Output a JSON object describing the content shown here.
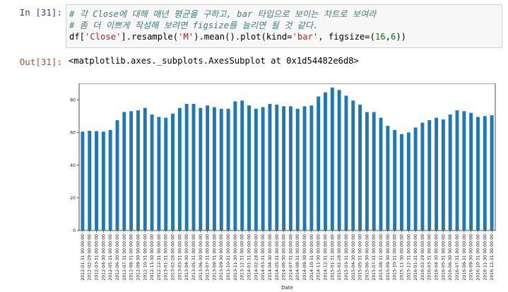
{
  "cell": {
    "in_prompt": "In [31]:",
    "out_prompt": "Out[31]:",
    "code": {
      "comment1": "# 각 Close에 대해 매년 평균을 구하고, bar 타입으로 보이는 차트로 보여라",
      "comment2": "# 좀 더 이쁘게 작성해 보려면 figsize를 늘리면 될 것 같다.",
      "line3": {
        "p1": "df[",
        "s1": "'Close'",
        "p2": "].resample(",
        "s2": "'M'",
        "p3": ").mean().plot(kind=",
        "s3": "'bar'",
        "p4": ", figsize=(",
        "n1": "16",
        "p5": ",",
        "n2": "6",
        "p6": "))"
      }
    },
    "output_text": "<matplotlib.axes._subplots.AxesSubplot at 0x1d54482e6d8>"
  },
  "chart_data": {
    "type": "bar",
    "xlabel": "Date",
    "ylabel": "",
    "ylim": [
      0,
      90
    ],
    "yticks": [
      0,
      20,
      40,
      60,
      80
    ],
    "bar_color": "#1f77b4",
    "categories": [
      "2012-01-31 00:00:00",
      "2012-02-29 00:00:00",
      "2012-03-31 00:00:00",
      "2012-04-30 00:00:00",
      "2012-05-31 00:00:00",
      "2012-06-30 00:00:00",
      "2012-07-31 00:00:00",
      "2012-08-31 00:00:00",
      "2012-09-30 00:00:00",
      "2012-10-31 00:00:00",
      "2012-11-30 00:00:00",
      "2012-12-31 00:00:00",
      "2013-01-31 00:00:00",
      "2013-02-28 00:00:00",
      "2013-03-31 00:00:00",
      "2013-04-30 00:00:00",
      "2013-05-31 00:00:00",
      "2013-06-30 00:00:00",
      "2013-07-31 00:00:00",
      "2013-08-31 00:00:00",
      "2013-09-30 00:00:00",
      "2013-10-31 00:00:00",
      "2013-11-30 00:00:00",
      "2013-12-31 00:00:00",
      "2014-01-31 00:00:00",
      "2014-02-28 00:00:00",
      "2014-03-31 00:00:00",
      "2014-04-30 00:00:00",
      "2014-05-31 00:00:00",
      "2014-06-30 00:00:00",
      "2014-07-31 00:00:00",
      "2014-08-31 00:00:00",
      "2014-09-30 00:00:00",
      "2014-10-31 00:00:00",
      "2014-11-30 00:00:00",
      "2014-12-31 00:00:00",
      "2015-01-31 00:00:00",
      "2015-02-28 00:00:00",
      "2015-03-31 00:00:00",
      "2015-04-30 00:00:00",
      "2015-05-31 00:00:00",
      "2015-06-30 00:00:00",
      "2015-07-31 00:00:00",
      "2015-08-31 00:00:00",
      "2015-09-30 00:00:00",
      "2015-10-31 00:00:00",
      "2015-11-30 00:00:00",
      "2015-12-31 00:00:00",
      "2016-01-31 00:00:00",
      "2016-02-29 00:00:00",
      "2016-03-31 00:00:00",
      "2016-04-30 00:00:00",
      "2016-05-31 00:00:00",
      "2016-06-30 00:00:00",
      "2016-07-31 00:00:00",
      "2016-08-31 00:00:00",
      "2016-09-30 00:00:00",
      "2016-10-31 00:00:00",
      "2016-11-30 00:00:00",
      "2016-12-31 00:00:00"
    ],
    "values": [
      60.5,
      61,
      60.8,
      60.5,
      61.5,
      67.5,
      72.5,
      73,
      73.5,
      75,
      71,
      69.5,
      69,
      71.5,
      75,
      77.5,
      77.5,
      75,
      76.5,
      75.5,
      74.5,
      74.5,
      79,
      79.5,
      76.5,
      74.5,
      75.5,
      77.5,
      77,
      76,
      76,
      74.5,
      76,
      76.5,
      82,
      84.5,
      87.5,
      86,
      82.5,
      79.5,
      77,
      72.5,
      72.5,
      69,
      64,
      61.5,
      59,
      60,
      63,
      66,
      67.5,
      69,
      68,
      71,
      73.5,
      73,
      72,
      69.5,
      70,
      70.5
    ]
  }
}
